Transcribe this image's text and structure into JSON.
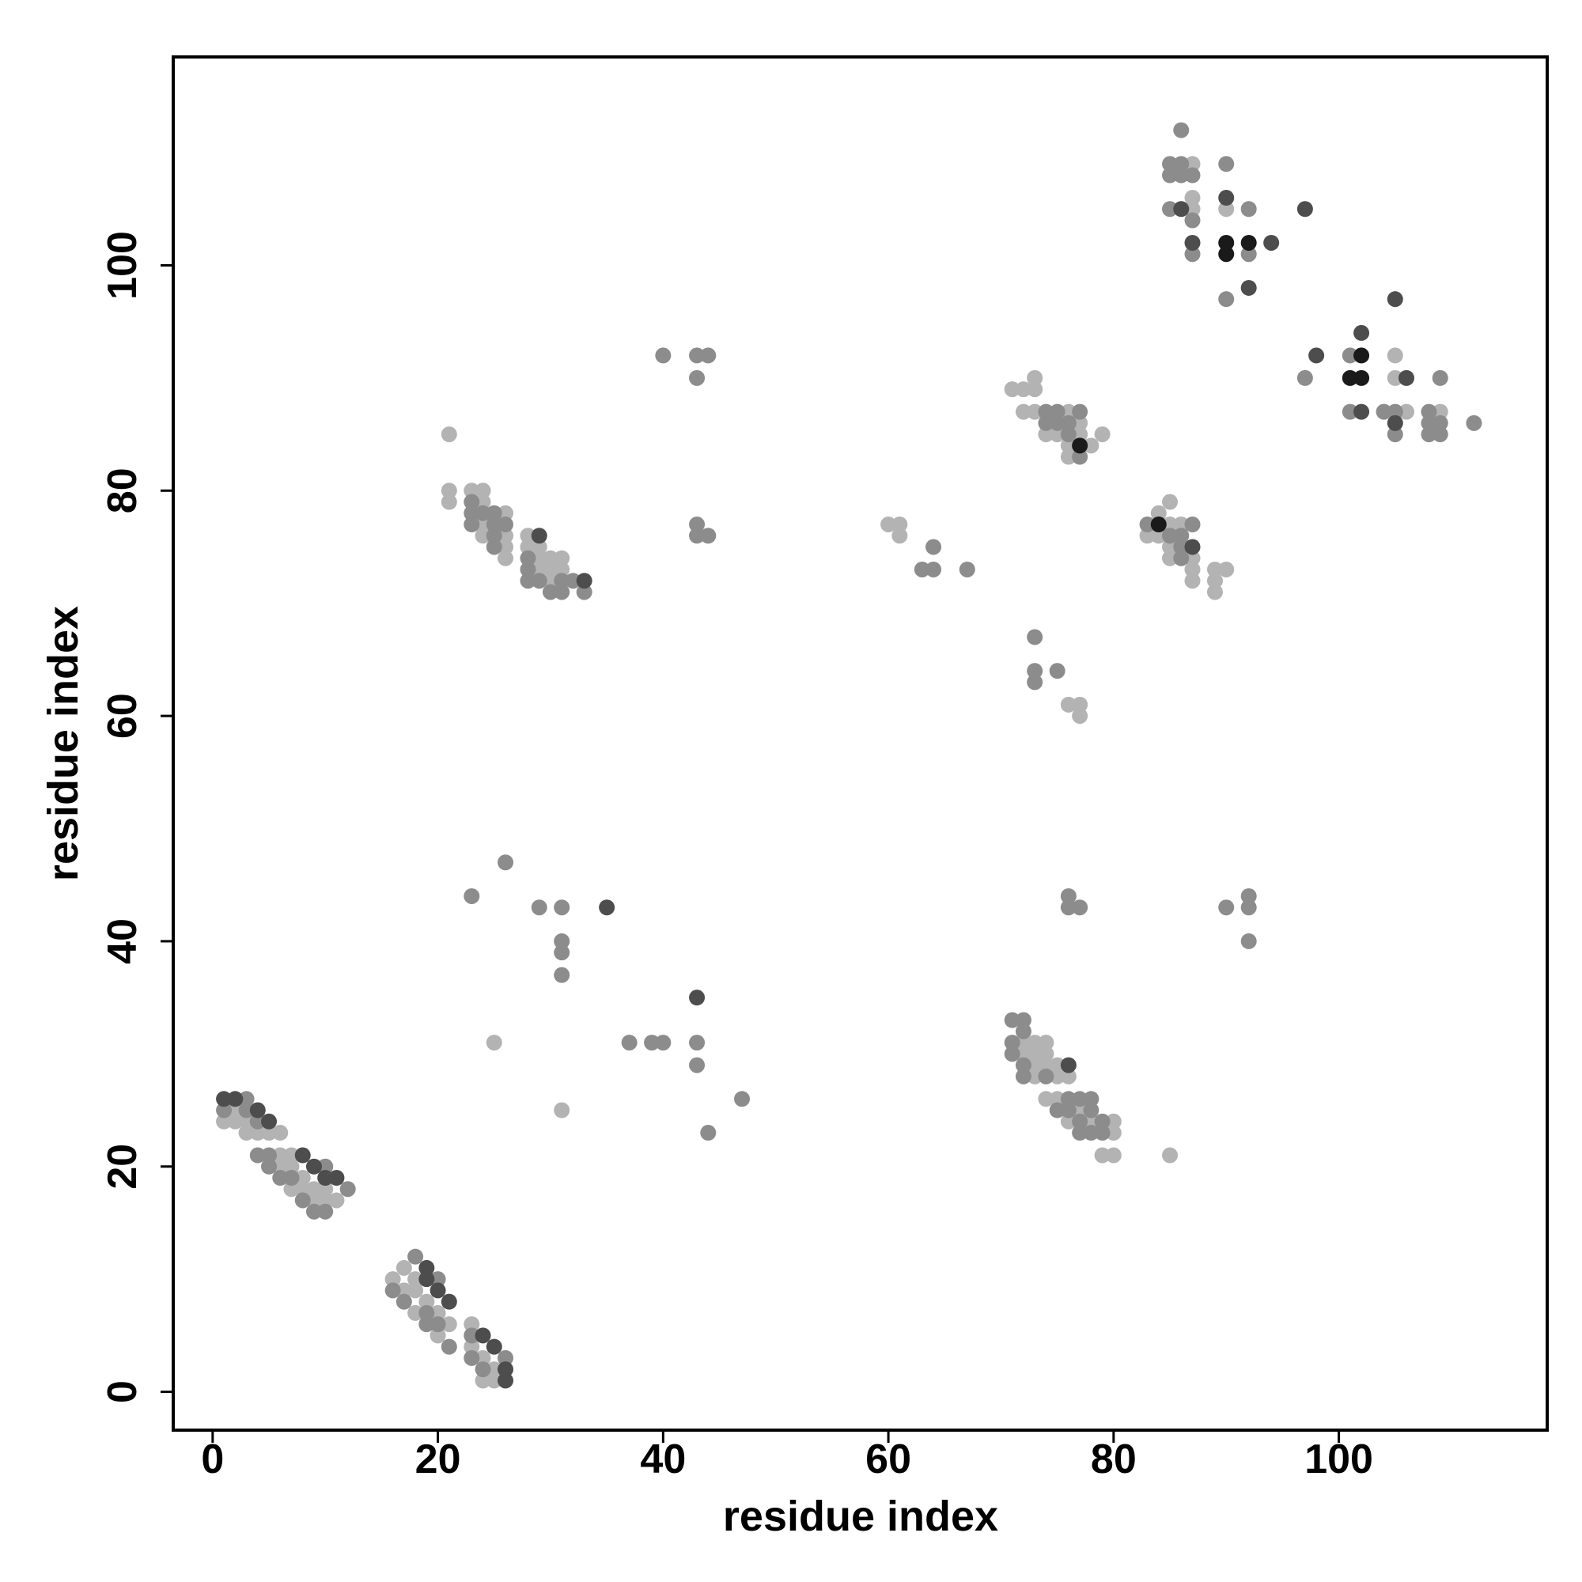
{
  "chart_data": {
    "type": "scatter",
    "x_label": "residue index",
    "y_label": "residue index",
    "xlim": [
      -3.5,
      118.5
    ],
    "ylim": [
      -3.4,
      118.5
    ],
    "xticks": [
      0,
      20,
      40,
      60,
      80,
      100
    ],
    "yticks": [
      0,
      20,
      40,
      60,
      80,
      100
    ],
    "series": [
      {
        "color": "#b3b3b3",
        "x": [
          1,
          2,
          2,
          3,
          3,
          4,
          5,
          6,
          6,
          7,
          6,
          7,
          7,
          8,
          9,
          10,
          11,
          9,
          10,
          8,
          16,
          17,
          17,
          18,
          18,
          18,
          19,
          20,
          20,
          21,
          23,
          23,
          24,
          24,
          25,
          25,
          21,
          21,
          21,
          23,
          24,
          24,
          24,
          26,
          24,
          26,
          26,
          26,
          28,
          28,
          29,
          29,
          30,
          31,
          29,
          30,
          31,
          30,
          25,
          31,
          60,
          61,
          61,
          76,
          77,
          77,
          85,
          72,
          73,
          74,
          72,
          73,
          74,
          73,
          74,
          75,
          73,
          75,
          76,
          74,
          75,
          77,
          76,
          78,
          80,
          80,
          79,
          80,
          71,
          72,
          73,
          73,
          72,
          73,
          76,
          77,
          74,
          75,
          77,
          79,
          76,
          78,
          76,
          84,
          85,
          85,
          86,
          83,
          84,
          85,
          85,
          87,
          87,
          87,
          89,
          90,
          89,
          89,
          87,
          87,
          87,
          90,
          105,
          105,
          106,
          109
        ],
        "values": [
          24,
          24,
          25,
          23,
          24,
          23,
          23,
          23,
          20,
          20,
          21,
          21,
          18,
          18,
          17,
          17,
          17,
          18,
          18,
          19,
          10,
          11,
          9,
          10,
          9,
          7,
          8,
          7,
          5,
          6,
          6,
          4,
          3,
          1,
          2,
          1,
          85,
          80,
          79,
          80,
          80,
          79,
          77,
          78,
          76,
          76,
          75,
          74,
          76,
          75,
          75,
          74,
          74,
          74,
          73,
          73,
          73,
          72,
          31,
          25,
          77,
          77,
          76,
          61,
          61,
          60,
          21,
          31,
          31,
          31,
          30,
          30,
          30,
          29,
          29,
          29,
          28,
          28,
          28,
          26,
          26,
          25,
          24,
          24,
          24,
          23,
          21,
          21,
          89,
          89,
          89,
          90,
          87,
          87,
          87,
          86,
          85,
          85,
          85,
          85,
          84,
          84,
          83,
          78,
          79,
          77,
          77,
          76,
          76,
          75,
          74,
          74,
          73,
          72,
          73,
          73,
          72,
          71,
          109,
          106,
          105,
          105,
          92,
          90,
          87,
          87
        ]
      },
      {
        "color": "#8c8c8c",
        "x": [
          1,
          3,
          3,
          4,
          5,
          5,
          6,
          7,
          8,
          9,
          10,
          10,
          12,
          4,
          16,
          17,
          18,
          19,
          19,
          20,
          20,
          21,
          23,
          23,
          24,
          26,
          23,
          23,
          24,
          23,
          25,
          25,
          26,
          25,
          25,
          28,
          28,
          28,
          29,
          31,
          32,
          30,
          31,
          33,
          23,
          26,
          29,
          31,
          31,
          31,
          31,
          37,
          39,
          40,
          43,
          43,
          47,
          44,
          40,
          43,
          44,
          43,
          43,
          43,
          44,
          64,
          63,
          64,
          67,
          73,
          73,
          73,
          75,
          76,
          76,
          77,
          90,
          92,
          92,
          92,
          71,
          72,
          72,
          71,
          71,
          72,
          72,
          74,
          76,
          77,
          78,
          75,
          76,
          78,
          77,
          79,
          77,
          78,
          79,
          74,
          75,
          77,
          74,
          75,
          76,
          76,
          77,
          83,
          87,
          85,
          86,
          86,
          86,
          86,
          85,
          86,
          85,
          86,
          87,
          85,
          87,
          87,
          90,
          92,
          92,
          90,
          101,
          97,
          109,
          101,
          104,
          105,
          108,
          108,
          109,
          112,
          105,
          108,
          109
        ],
        "values": [
          25,
          26,
          25,
          21,
          21,
          20,
          19,
          19,
          17,
          16,
          16,
          20,
          18,
          24,
          9,
          8,
          12,
          6,
          7,
          10,
          6,
          4,
          5,
          3,
          2,
          3,
          79,
          78,
          78,
          77,
          78,
          77,
          77,
          76,
          75,
          74,
          73,
          72,
          72,
          72,
          72,
          71,
          71,
          71,
          44,
          47,
          43,
          43,
          40,
          39,
          37,
          31,
          31,
          31,
          31,
          29,
          26,
          23,
          92,
          92,
          92,
          90,
          77,
          76,
          76,
          75,
          73,
          73,
          73,
          67,
          64,
          63,
          64,
          44,
          43,
          43,
          43,
          44,
          43,
          40,
          33,
          33,
          32,
          31,
          30,
          29,
          28,
          28,
          26,
          26,
          26,
          25,
          25,
          25,
          24,
          24,
          23,
          23,
          23,
          87,
          87,
          87,
          86,
          86,
          86,
          85,
          83,
          77,
          77,
          76,
          76,
          75,
          74,
          112,
          109,
          109,
          108,
          108,
          108,
          105,
          104,
          101,
          109,
          105,
          101,
          97,
          92,
          90,
          90,
          87,
          87,
          87,
          87,
          86,
          86,
          86,
          85,
          85,
          85
        ]
      },
      {
        "color": "#4d4d4d",
        "x": [
          1,
          2,
          4,
          5,
          8,
          9,
          10,
          11,
          19,
          19,
          20,
          21,
          24,
          25,
          26,
          26,
          29,
          33,
          35,
          43,
          76,
          87,
          86,
          87,
          90,
          97,
          94,
          92,
          105,
          102,
          98,
          106,
          102,
          105
        ],
        "values": [
          26,
          26,
          25,
          24,
          21,
          20,
          19,
          19,
          11,
          10,
          9,
          8,
          5,
          4,
          2,
          1,
          76,
          72,
          43,
          35,
          29,
          75,
          105,
          102,
          106,
          105,
          102,
          98,
          97,
          94,
          92,
          90,
          87,
          86
        ]
      },
      {
        "color": "#1a1a1a",
        "x": [
          77,
          84,
          90,
          90,
          92,
          102,
          101,
          102
        ],
        "values": [
          84,
          77,
          102,
          101,
          102,
          92,
          90,
          90
        ]
      }
    ]
  }
}
